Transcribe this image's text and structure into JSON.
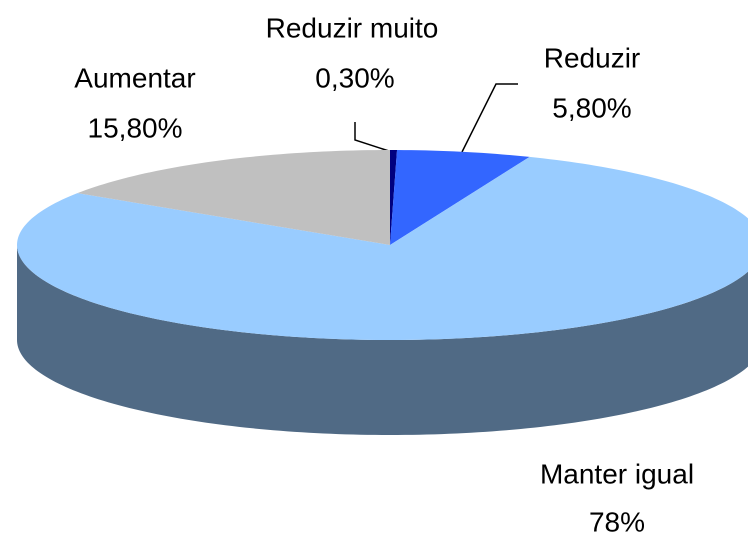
{
  "chart_data": {
    "type": "pie3d",
    "categories": [
      "Reduzir muito",
      "Reduzir",
      "Manter igual",
      "Aumentar"
    ],
    "values": [
      0.3,
      5.8,
      78,
      15.8
    ],
    "value_labels": [
      "0,30%",
      "5,80%",
      "78%",
      "15,80%"
    ],
    "colors": [
      "#000080",
      "#3366ff",
      "#99ccff",
      "#c0c0c0"
    ]
  }
}
